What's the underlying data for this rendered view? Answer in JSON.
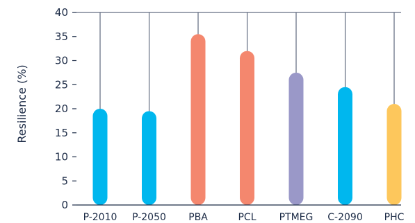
{
  "chart_data": {
    "type": "bar",
    "categories": [
      "P-2010",
      "P-2050",
      "PBA",
      "PCL",
      "PTMEG",
      "C-2090",
      "PHC"
    ],
    "values": [
      20,
      19.5,
      35.5,
      32,
      27.5,
      24.5,
      21
    ],
    "colors": [
      "#00b7ee",
      "#00b7ee",
      "#f4876e",
      "#f4876e",
      "#9a98c8",
      "#00b7ee",
      "#fdc75c"
    ],
    "ylabel": "Resilience (%)",
    "xlabel": "",
    "title": "",
    "ylim": [
      0,
      40
    ],
    "yticks": [
      0,
      5,
      10,
      15,
      20,
      25,
      30,
      35,
      40
    ],
    "grid": "vertical lines at categories, horizontal line at top"
  }
}
